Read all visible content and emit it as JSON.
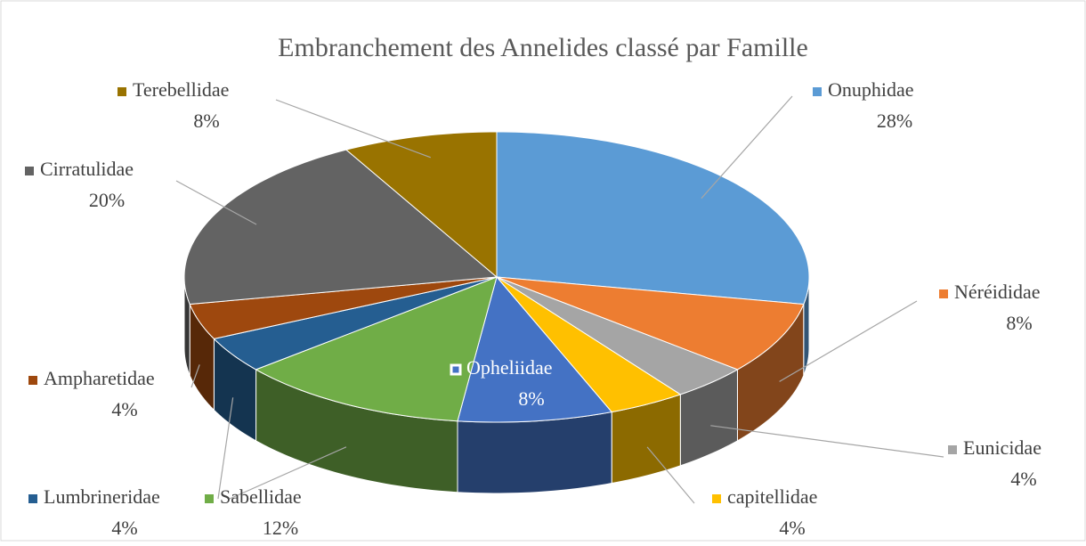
{
  "chart_data": {
    "type": "pie",
    "title": "Embranchement des Annelides classé par Famille",
    "categories": [
      "Onuphidae",
      "Néréididae",
      "Eunicidae",
      "capitellidae",
      "Opheliidae",
      "Sabellidae",
      "Lumbrineridae",
      "Ampharetidae",
      "Cirratulidae",
      "Terebellidae"
    ],
    "values": [
      28,
      8,
      4,
      4,
      8,
      12,
      4,
      4,
      20,
      8
    ],
    "value_labels": [
      "28%",
      "8%",
      "4%",
      "4%",
      "8%",
      "12%",
      "4%",
      "4%",
      "20%",
      "8%"
    ],
    "colors": [
      "#5b9bd5",
      "#ed7d31",
      "#a5a5a5",
      "#ffc000",
      "#4472c4",
      "#70ad47",
      "#255e91",
      "#9e480e",
      "#636363",
      "#997300"
    ]
  }
}
